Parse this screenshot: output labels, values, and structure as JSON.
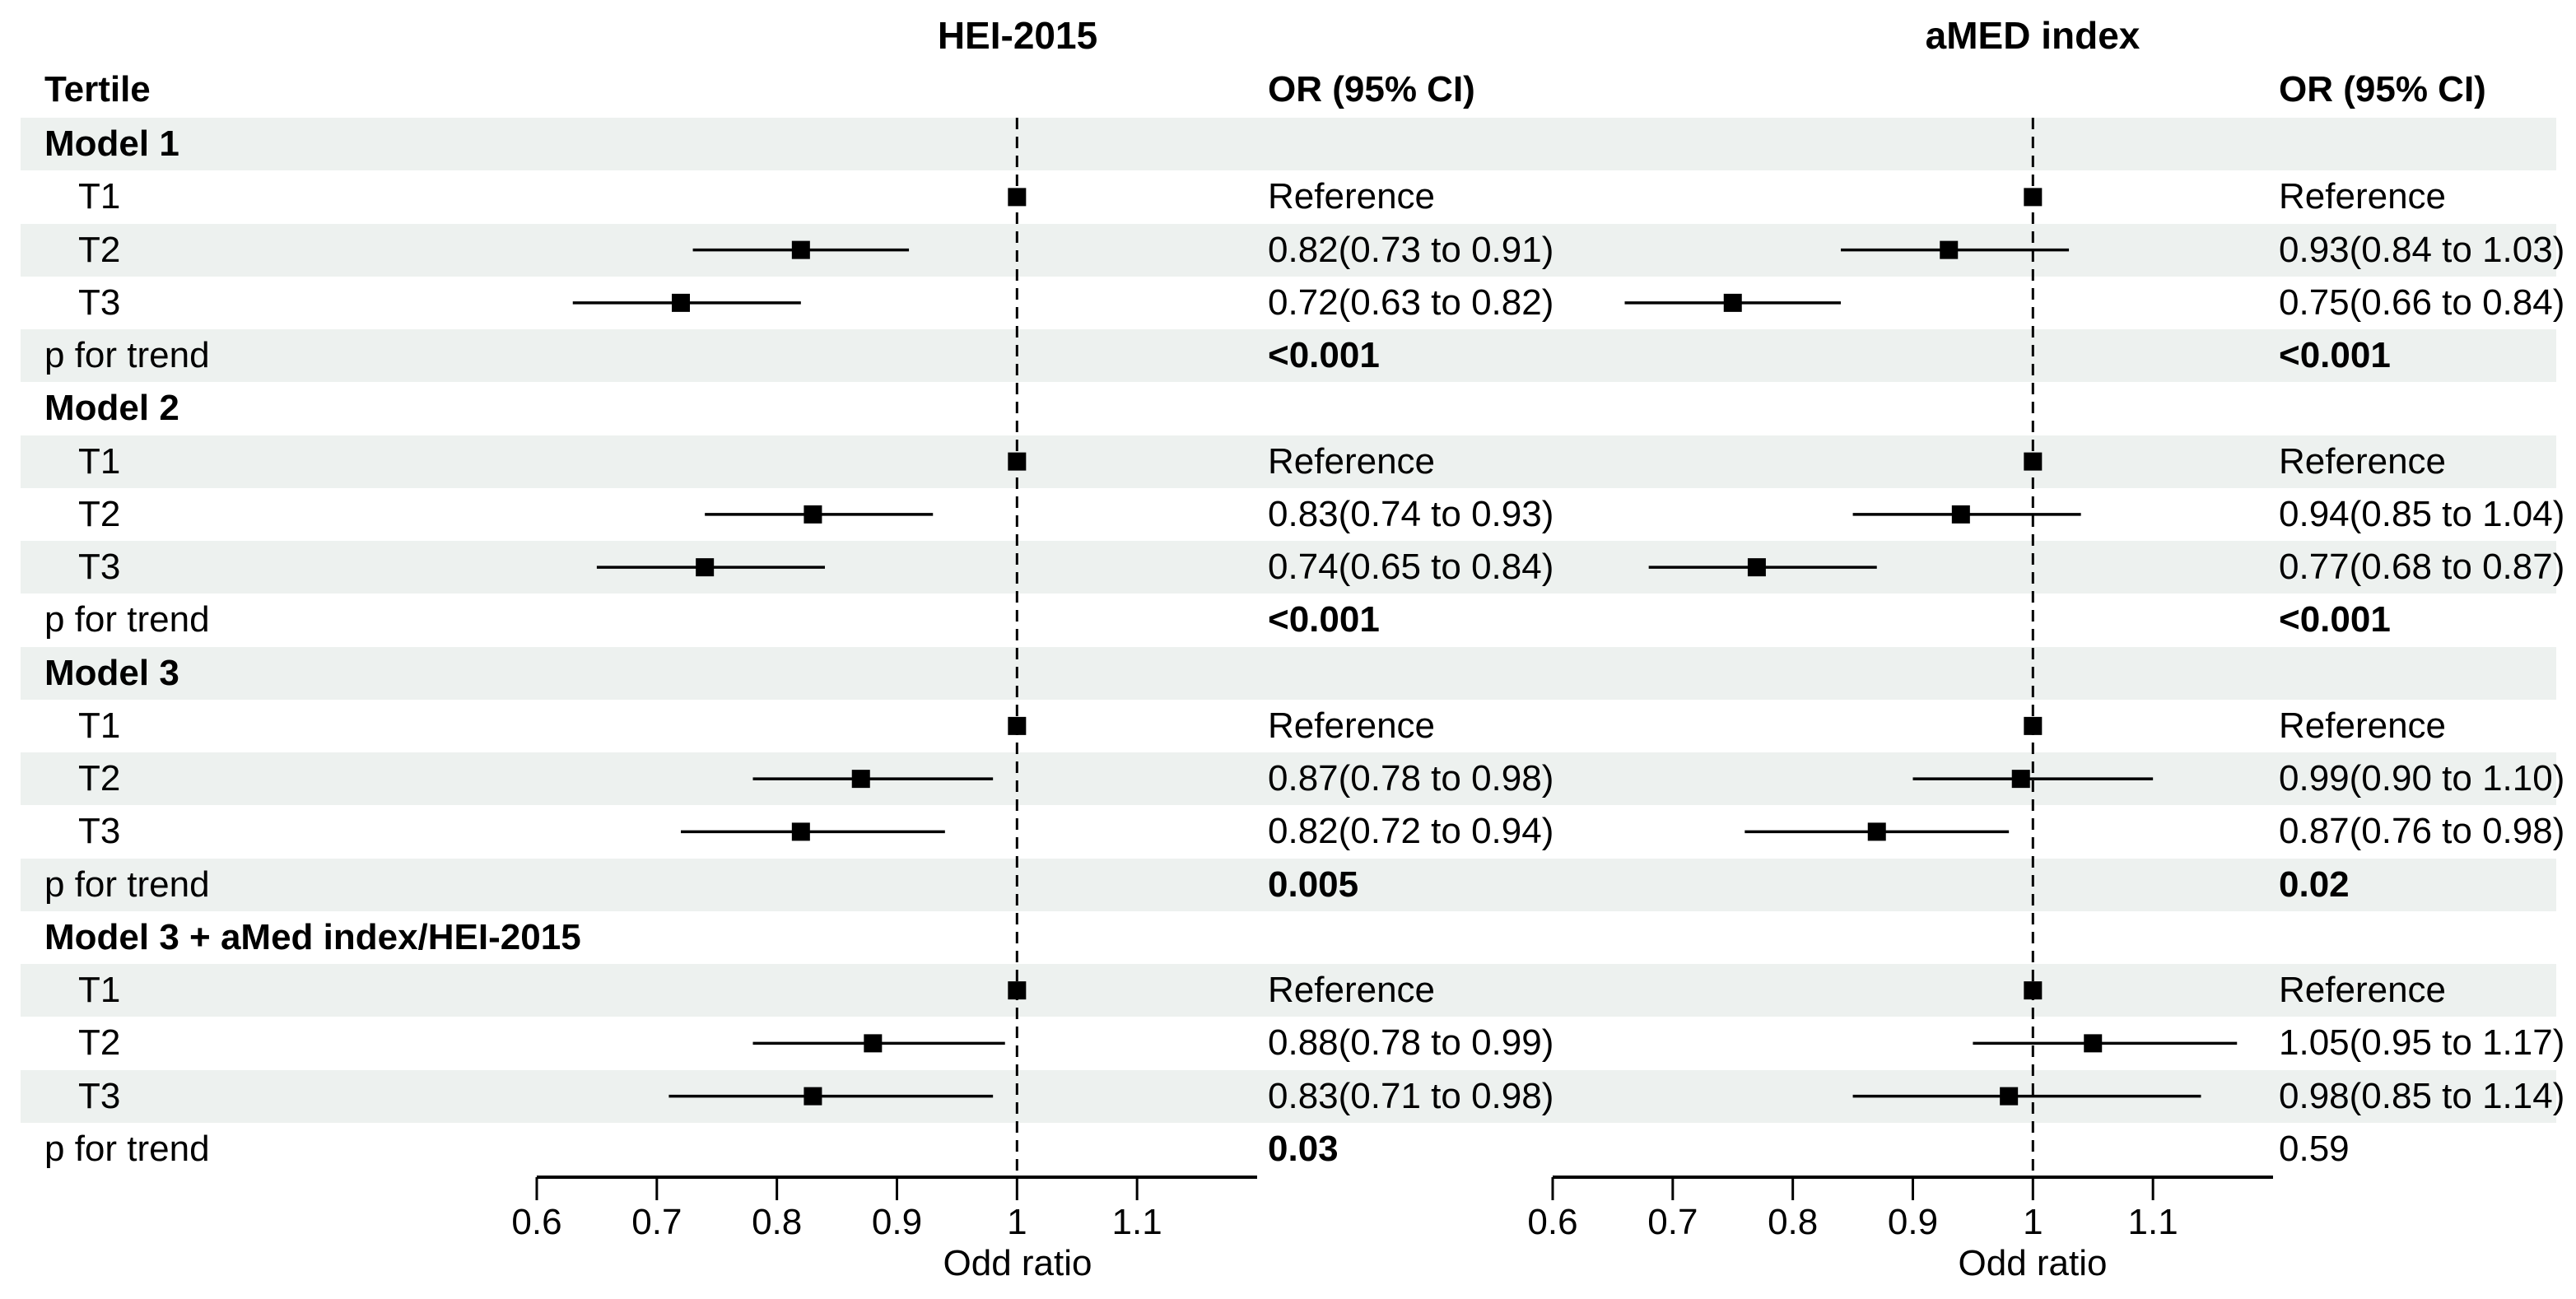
{
  "header": {
    "tertile": "Tertile",
    "or_ci": "OR (95% CI)"
  },
  "chart_data": {
    "type": "forest",
    "panel_titles": [
      "HEI-2015",
      "aMED index"
    ],
    "axis": {
      "min": 0.6,
      "max": 1.2,
      "ticks": [
        0.6,
        0.7,
        0.8,
        0.9,
        1,
        1.1
      ],
      "label": "Odd ratio",
      "reference_line": 1.0
    },
    "rows": [
      {
        "kind": "model",
        "label": "Model 1"
      },
      {
        "kind": "tertile",
        "label": "T1",
        "hei": {
          "text": "Reference",
          "or": 1.0
        },
        "amed": {
          "text": "Reference",
          "or": 1.0
        }
      },
      {
        "kind": "tertile",
        "label": "T2",
        "hei": {
          "text": "0.82(0.73 to 0.91)",
          "or": 0.82,
          "lo": 0.73,
          "hi": 0.91
        },
        "amed": {
          "text": "0.93(0.84 to 1.03)",
          "or": 0.93,
          "lo": 0.84,
          "hi": 1.03
        }
      },
      {
        "kind": "tertile",
        "label": "T3",
        "hei": {
          "text": "0.72(0.63 to 0.82)",
          "or": 0.72,
          "lo": 0.63,
          "hi": 0.82
        },
        "amed": {
          "text": "0.75(0.66 to 0.84)",
          "or": 0.75,
          "lo": 0.66,
          "hi": 0.84
        }
      },
      {
        "kind": "ptrend",
        "label": "p for trend",
        "hei": {
          "text": "<0.001",
          "bold": true
        },
        "amed": {
          "text": "<0.001",
          "bold": true
        }
      },
      {
        "kind": "model",
        "label": "Model 2"
      },
      {
        "kind": "tertile",
        "label": "T1",
        "hei": {
          "text": "Reference",
          "or": 1.0
        },
        "amed": {
          "text": "Reference",
          "or": 1.0
        }
      },
      {
        "kind": "tertile",
        "label": "T2",
        "hei": {
          "text": "0.83(0.74 to 0.93)",
          "or": 0.83,
          "lo": 0.74,
          "hi": 0.93
        },
        "amed": {
          "text": "0.94(0.85 to 1.04)",
          "or": 0.94,
          "lo": 0.85,
          "hi": 1.04
        }
      },
      {
        "kind": "tertile",
        "label": "T3",
        "hei": {
          "text": "0.74(0.65 to 0.84)",
          "or": 0.74,
          "lo": 0.65,
          "hi": 0.84
        },
        "amed": {
          "text": "0.77(0.68 to 0.87)",
          "or": 0.77,
          "lo": 0.68,
          "hi": 0.87
        }
      },
      {
        "kind": "ptrend",
        "label": "p for trend",
        "hei": {
          "text": "<0.001",
          "bold": true
        },
        "amed": {
          "text": "<0.001",
          "bold": true
        }
      },
      {
        "kind": "model",
        "label": "Model 3"
      },
      {
        "kind": "tertile",
        "label": "T1",
        "hei": {
          "text": "Reference",
          "or": 1.0
        },
        "amed": {
          "text": "Reference",
          "or": 1.0
        }
      },
      {
        "kind": "tertile",
        "label": "T2",
        "hei": {
          "text": "0.87(0.78 to 0.98)",
          "or": 0.87,
          "lo": 0.78,
          "hi": 0.98
        },
        "amed": {
          "text": "0.99(0.90 to 1.10)",
          "or": 0.99,
          "lo": 0.9,
          "hi": 1.1
        }
      },
      {
        "kind": "tertile",
        "label": "T3",
        "hei": {
          "text": "0.82(0.72 to 0.94)",
          "or": 0.82,
          "lo": 0.72,
          "hi": 0.94
        },
        "amed": {
          "text": "0.87(0.76 to 0.98)",
          "or": 0.87,
          "lo": 0.76,
          "hi": 0.98
        }
      },
      {
        "kind": "ptrend",
        "label": "p for trend",
        "hei": {
          "text": "0.005",
          "bold": true
        },
        "amed": {
          "text": "0.02",
          "bold": true
        }
      },
      {
        "kind": "model",
        "label": "Model 3 + aMed index/HEI-2015"
      },
      {
        "kind": "tertile",
        "label": "T1",
        "hei": {
          "text": "Reference",
          "or": 1.0
        },
        "amed": {
          "text": "Reference",
          "or": 1.0
        }
      },
      {
        "kind": "tertile",
        "label": "T2",
        "hei": {
          "text": "0.88(0.78 to 0.99)",
          "or": 0.88,
          "lo": 0.78,
          "hi": 0.99
        },
        "amed": {
          "text": "1.05(0.95 to 1.17)",
          "or": 1.05,
          "lo": 0.95,
          "hi": 1.17
        }
      },
      {
        "kind": "tertile",
        "label": "T3",
        "hei": {
          "text": "0.83(0.71 to 0.98)",
          "or": 0.83,
          "lo": 0.71,
          "hi": 0.98
        },
        "amed": {
          "text": "0.98(0.85 to 1.14)",
          "or": 0.98,
          "lo": 0.85,
          "hi": 1.14
        }
      },
      {
        "kind": "ptrend",
        "label": "p for trend",
        "hei": {
          "text": "0.03",
          "bold": true
        },
        "amed": {
          "text": "0.59",
          "bold": false
        }
      }
    ]
  },
  "colors": {
    "band": "#edf1ef",
    "ink": "#000000"
  }
}
